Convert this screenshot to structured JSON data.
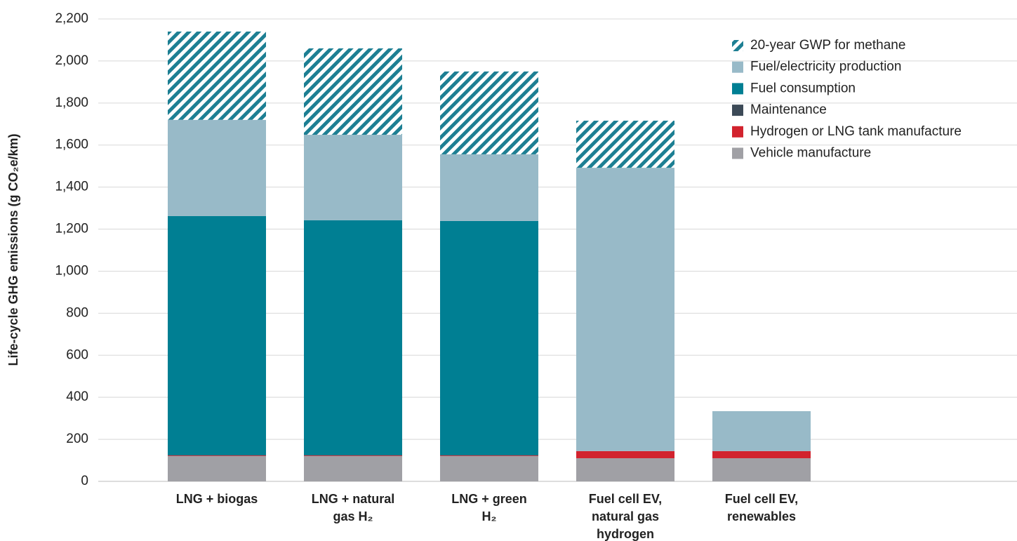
{
  "chart_data": {
    "type": "stacked_bar",
    "y_label": "Life-cycle GHG emissions (g CO₂e/km)",
    "categories": [
      "LNG + biogas",
      "LNG + natural gas H₂",
      "LNG + green H₂",
      "Fuel cell EV, natural gas hydrogen",
      "Fuel cell EV, renewables"
    ],
    "series": [
      {
        "name": "Vehicle manufacture",
        "color": "#a0a0a5",
        "values": [
          120,
          120,
          120,
          110,
          110
        ]
      },
      {
        "name": "Hydrogen or LNG tank manufacture",
        "color": "#d2232e",
        "values": [
          3,
          3,
          3,
          34,
          34
        ]
      },
      {
        "name": "Maintenance",
        "color": "#3c4a57",
        "values": [
          2,
          2,
          2,
          0,
          0
        ]
      },
      {
        "name": "Fuel consumption",
        "color": "#007f93",
        "values": [
          1137,
          1117,
          1114,
          0,
          0
        ]
      },
      {
        "name": "Fuel/electricity production",
        "color": "#98bac8",
        "values": [
          458,
          407,
          317,
          1348,
          190
        ]
      },
      {
        "name": "20-year GWP for methane",
        "color": "#1d7f93",
        "hatch": true,
        "values": [
          420,
          411,
          394,
          224,
          0
        ]
      }
    ],
    "ylim": [
      0,
      2200
    ],
    "yticks": [
      0,
      200,
      400,
      600,
      800,
      {
        "value": 1000,
        "label": "1,000"
      },
      {
        "value": 1200,
        "label": "1,200"
      },
      {
        "value": 1400,
        "label": "1,400"
      },
      {
        "value": 1600,
        "label": "1,600"
      },
      {
        "value": 1800,
        "label": "1,800"
      },
      {
        "value": 2000,
        "label": "2,000"
      },
      {
        "value": 2200,
        "label": "2,200"
      }
    ],
    "grid": true
  }
}
